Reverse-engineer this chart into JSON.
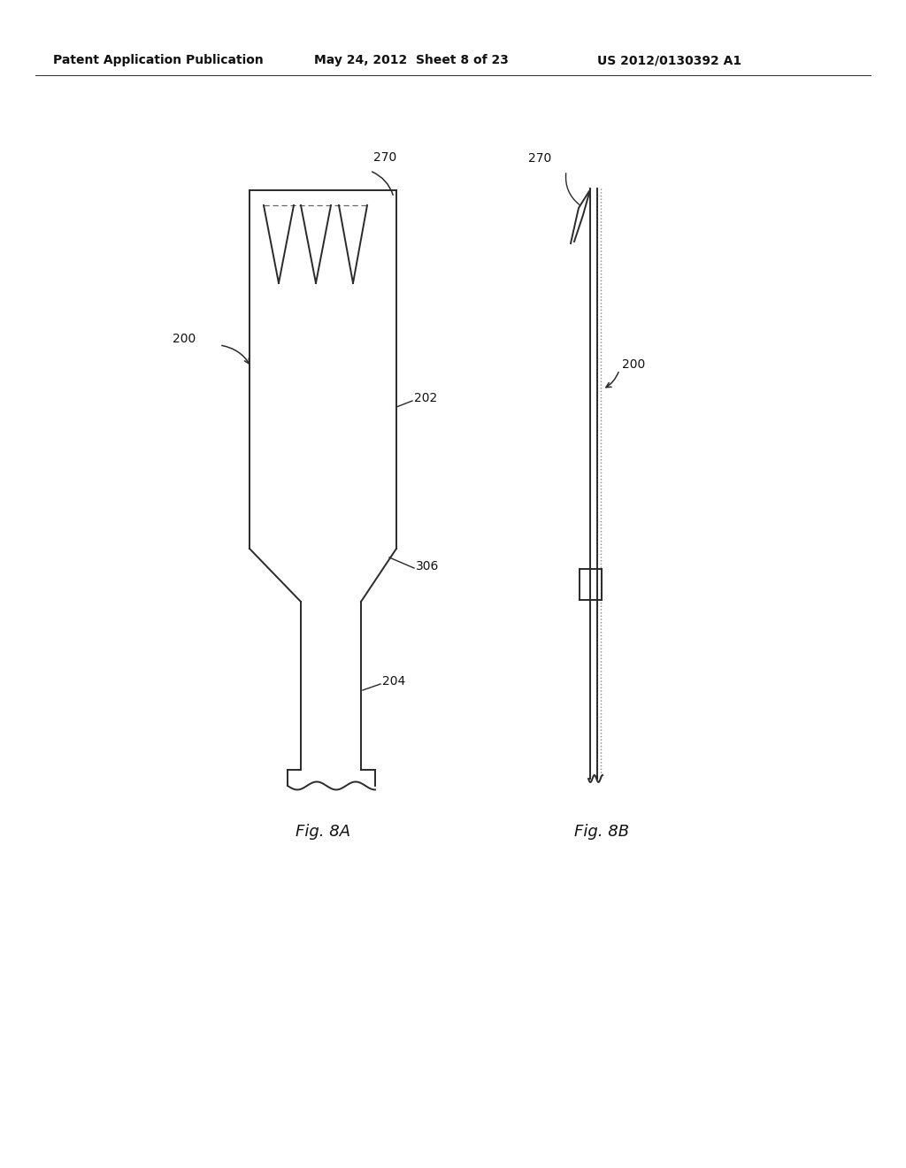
{
  "background_color": "#ffffff",
  "header_text": "Patent Application Publication",
  "header_date": "May 24, 2012  Sheet 8 of 23",
  "header_patent": "US 2012/0130392 A1",
  "fig8a_label": "Fig. 8A",
  "fig8b_label": "Fig. 8B",
  "label_200a": "200",
  "label_202": "202",
  "label_204": "204",
  "label_270a": "270",
  "label_306": "306",
  "label_270b": "270",
  "label_200b": "200",
  "line_color": "#2a2a2a",
  "text_color": "#111111"
}
